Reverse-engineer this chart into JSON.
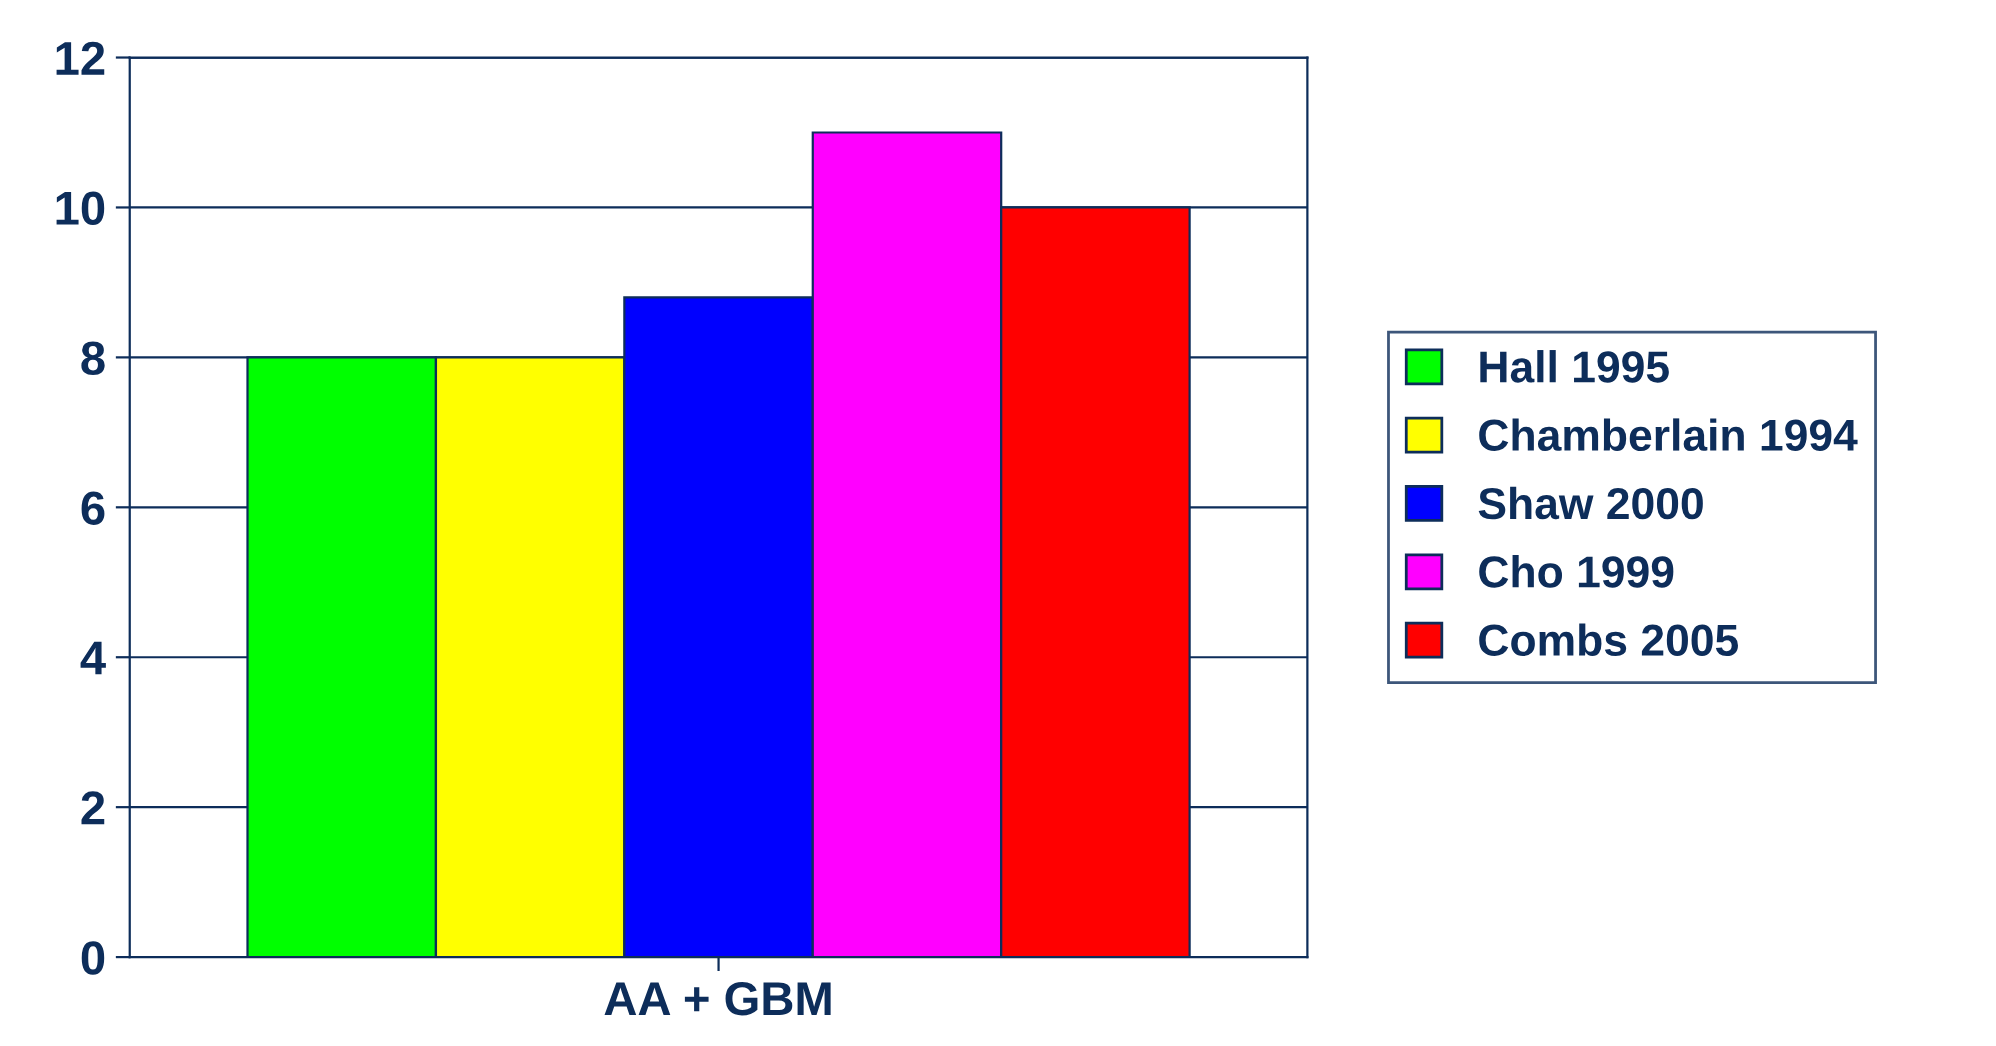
{
  "chart_data": {
    "type": "bar",
    "categories": [
      "AA + GBM"
    ],
    "series": [
      {
        "name": "Hall 1995",
        "color": "#00ff00",
        "values": [
          8
        ]
      },
      {
        "name": "Chamberlain 1994",
        "color": "#ffff00",
        "values": [
          8
        ]
      },
      {
        "name": "Shaw 2000",
        "color": "#0000ff",
        "values": [
          8.8
        ]
      },
      {
        "name": "Cho 1999",
        "color": "#ff00ff",
        "values": [
          11
        ]
      },
      {
        "name": "Combs 2005",
        "color": "#ff0000",
        "values": [
          10
        ]
      }
    ],
    "ylim": [
      0,
      12
    ],
    "yticks": [
      0,
      2,
      4,
      6,
      8,
      10,
      12
    ],
    "grid": "y",
    "legend": "right"
  }
}
